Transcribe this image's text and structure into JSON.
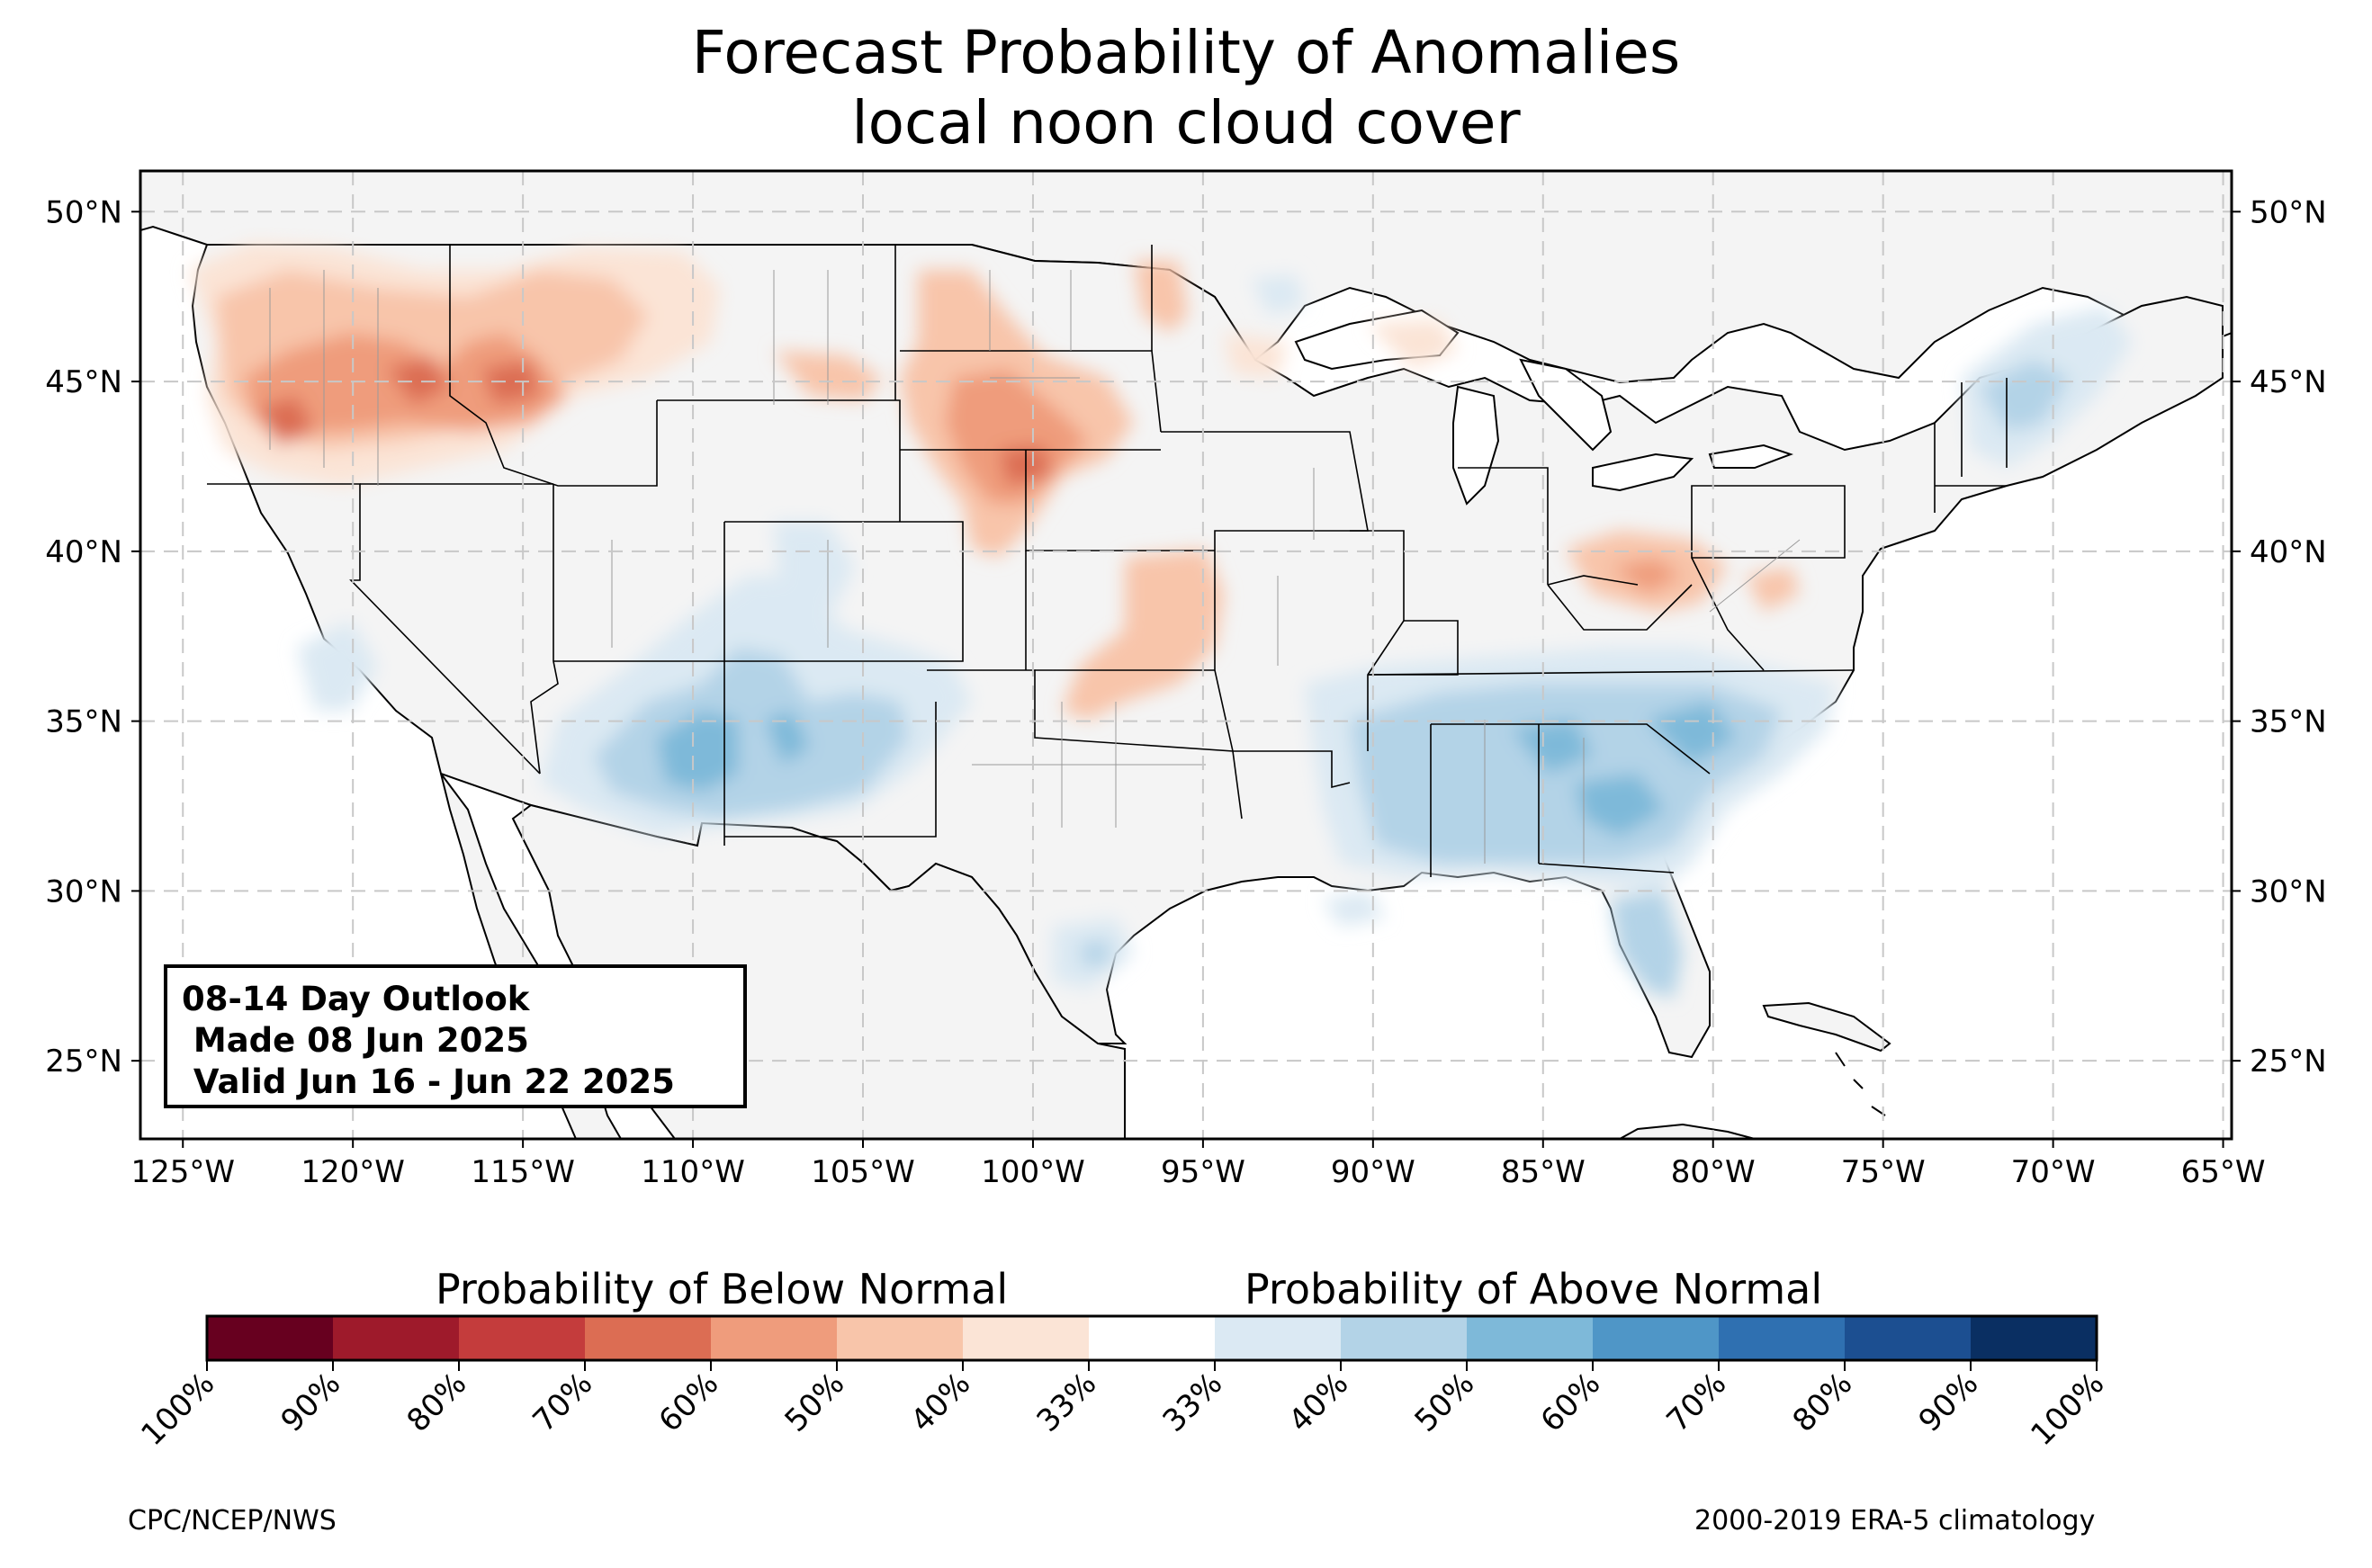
{
  "title": {
    "line1": "Forecast Probability of Anomalies",
    "line2": "local noon cloud cover"
  },
  "info_box": {
    "line1": "08-14 Day Outlook",
    "line2": " Made 08 Jun 2025",
    "line3": " Valid Jun 16 - Jun 22 2025"
  },
  "axes": {
    "lon_labels": [
      "125°W",
      "120°W",
      "115°W",
      "110°W",
      "105°W",
      "100°W",
      "95°W",
      "90°W",
      "85°W",
      "80°W",
      "75°W",
      "70°W",
      "65°W"
    ],
    "lat_labels": [
      "50°N",
      "45°N",
      "40°N",
      "35°N",
      "30°N",
      "25°N"
    ],
    "lon_range": [
      -126.25,
      -64.75
    ],
    "lat_range": [
      22.7,
      51.2
    ],
    "grid": true
  },
  "colorbar": {
    "below_label": "Probability of Below Normal",
    "above_label": "Probability of Above Normal",
    "tick_labels": [
      "100%",
      "90%",
      "80%",
      "70%",
      "60%",
      "50%",
      "40%",
      "33%",
      "33%",
      "40%",
      "50%",
      "60%",
      "70%",
      "80%",
      "90%",
      "100%"
    ],
    "colors": [
      "#67001f",
      "#9e1a2b",
      "#c43c3c",
      "#dc6d53",
      "#ef9c7c",
      "#f8c5aa",
      "#fbe4d6",
      "#ffffff",
      "#dbe9f3",
      "#b3d3e7",
      "#7eb9d9",
      "#4f96c7",
      "#2f70b1",
      "#1c4f91",
      "#0a2f62"
    ]
  },
  "footer": {
    "left": "CPC/NCEP/NWS",
    "right": "2000-2019 ERA-5 climatology"
  },
  "map": {
    "land_color": "#f4f4f4",
    "below_regions": [
      {
        "name": "Pacific Northwest",
        "level": "50-60%",
        "lon": -118.5,
        "lat": 45.6
      },
      {
        "name": "Idaho / Montana",
        "level": "50-60%",
        "lon": -114.5,
        "lat": 45.3
      },
      {
        "name": "Nebraska / South Dakota",
        "level": "50-60%",
        "lon": -99.5,
        "lat": 42.6
      },
      {
        "name": "Minnesota",
        "level": "40-50%",
        "lon": -96.5,
        "lat": 47.2
      },
      {
        "name": "Kansas",
        "level": "40-50%",
        "lon": -96.0,
        "lat": 38.5
      },
      {
        "name": "Ohio Valley",
        "level": "40-50%",
        "lon": -82.5,
        "lat": 39.6
      }
    ],
    "above_regions": [
      {
        "name": "Arizona / New Mexico",
        "level": "50-60%",
        "lon": -108.5,
        "lat": 33.6
      },
      {
        "name": "Southeast",
        "level": "50-60%",
        "lon": -84.0,
        "lat": 33.5
      },
      {
        "name": "Florida",
        "level": "40-50%",
        "lon": -81.8,
        "lat": 28.0
      },
      {
        "name": "New England",
        "level": "40-50%",
        "lon": -71.0,
        "lat": 44.6
      },
      {
        "name": "California",
        "level": "40-50%",
        "lon": -120.0,
        "lat": 36.5
      },
      {
        "name": "South Texas",
        "level": "40-50%",
        "lon": -98.5,
        "lat": 27.5
      }
    ]
  }
}
